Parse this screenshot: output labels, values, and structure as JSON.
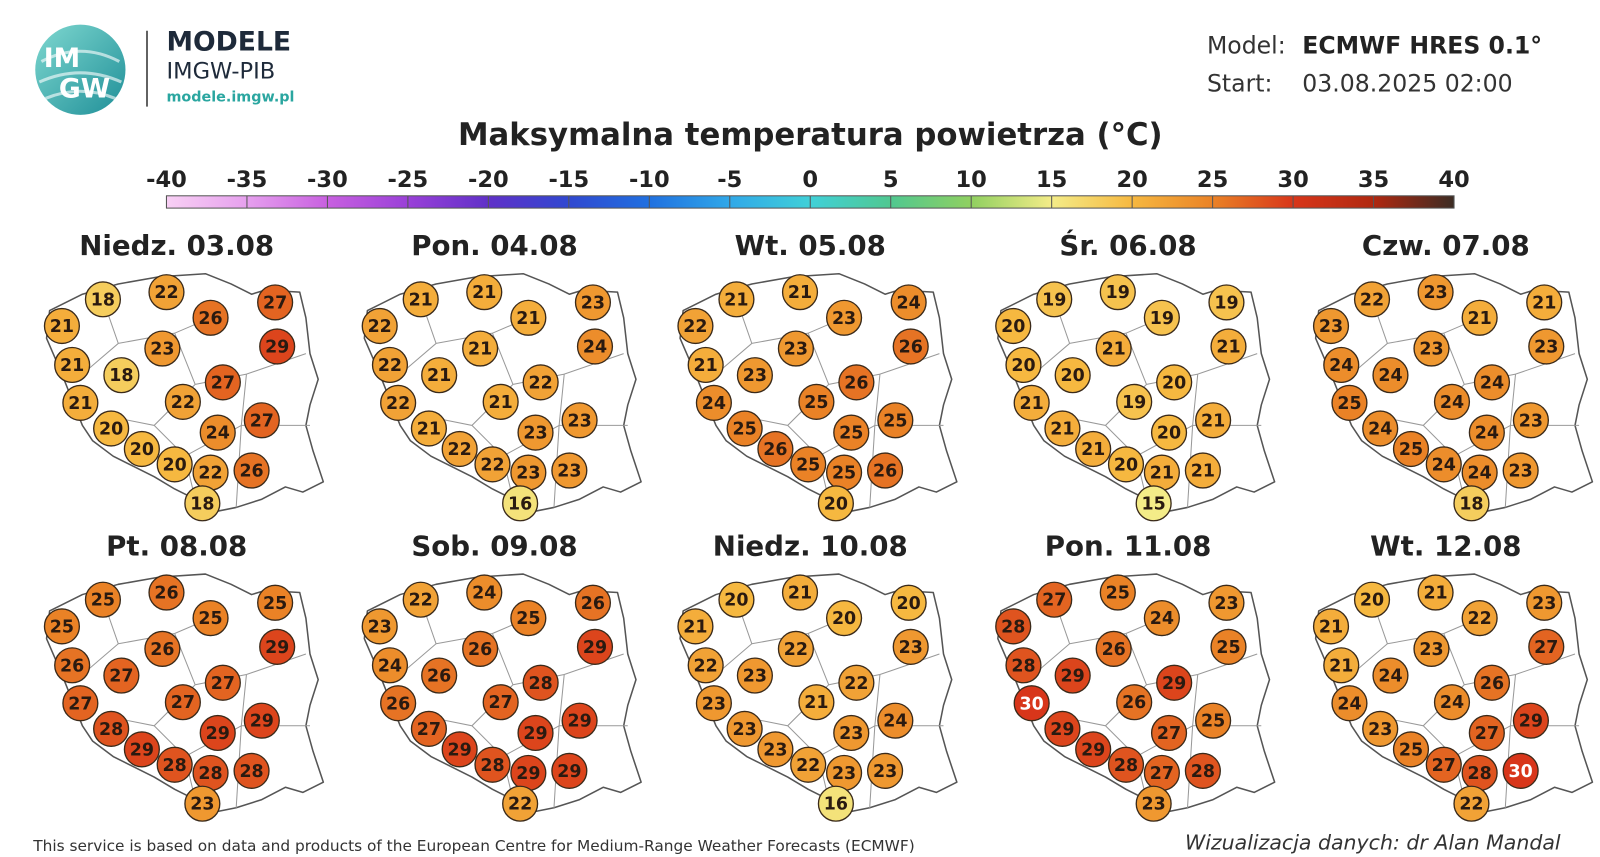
{
  "header": {
    "logo_text": [
      "IM",
      "GW"
    ],
    "brand": "MODELE",
    "org": "IMGW-PIB",
    "url": "modele.imgw.pl",
    "model_label": "Model:",
    "model": "ECMWF HRES 0.1°",
    "start_label": "Start:",
    "start": "03.08.2025 02:00"
  },
  "title": "Maksymalna temperatura powietrza (°C)",
  "colorbar": {
    "ticks": [
      -40,
      -35,
      -30,
      -25,
      -20,
      -15,
      -10,
      -5,
      0,
      5,
      10,
      15,
      20,
      25,
      30,
      35,
      40
    ],
    "colors": [
      "#f8d0f4",
      "#e6a0ee",
      "#c860e0",
      "#9a40d8",
      "#6030c8",
      "#3048d0",
      "#2070e0",
      "#30a8e8",
      "#40d0d8",
      "#50c890",
      "#90d060",
      "#f4ec88",
      "#f6b840",
      "#ea8226",
      "#d8361a",
      "#b02810",
      "#3c2c24"
    ]
  },
  "maps": [
    {
      "title": "Niedz. 03.08",
      "values": [
        21,
        18,
        22,
        26,
        27,
        29,
        23,
        21,
        18,
        27,
        21,
        22,
        20,
        27,
        24,
        20,
        20,
        22,
        26,
        18
      ]
    },
    {
      "title": "Pon. 04.08",
      "values": [
        22,
        21,
        21,
        21,
        23,
        24,
        21,
        22,
        21,
        22,
        22,
        21,
        21,
        23,
        23,
        22,
        22,
        23,
        23,
        16
      ]
    },
    {
      "title": "Wt. 05.08",
      "values": [
        22,
        21,
        21,
        23,
        24,
        26,
        23,
        21,
        23,
        26,
        24,
        25,
        25,
        25,
        25,
        26,
        25,
        25,
        26,
        20
      ]
    },
    {
      "title": "Śr. 06.08",
      "values": [
        20,
        19,
        19,
        19,
        19,
        21,
        21,
        20,
        20,
        20,
        21,
        19,
        21,
        21,
        20,
        21,
        20,
        21,
        21,
        15
      ]
    },
    {
      "title": "Czw. 07.08",
      "values": [
        23,
        22,
        23,
        21,
        21,
        23,
        23,
        24,
        24,
        24,
        25,
        24,
        24,
        23,
        24,
        25,
        24,
        24,
        23,
        18
      ]
    },
    {
      "title": "Pt. 08.08",
      "values": [
        25,
        25,
        26,
        25,
        25,
        29,
        26,
        26,
        27,
        27,
        27,
        27,
        28,
        29,
        29,
        29,
        28,
        28,
        28,
        23
      ]
    },
    {
      "title": "Sob. 09.08",
      "values": [
        23,
        22,
        24,
        25,
        26,
        29,
        26,
        24,
        26,
        28,
        26,
        27,
        27,
        29,
        29,
        29,
        28,
        29,
        29,
        22
      ]
    },
    {
      "title": "Niedz. 10.08",
      "values": [
        21,
        20,
        21,
        20,
        20,
        23,
        22,
        22,
        23,
        22,
        23,
        21,
        23,
        24,
        23,
        23,
        22,
        23,
        23,
        16
      ]
    },
    {
      "title": "Pon. 11.08",
      "values": [
        28,
        27,
        25,
        24,
        23,
        25,
        26,
        28,
        29,
        29,
        30,
        26,
        29,
        25,
        27,
        29,
        28,
        27,
        28,
        23
      ]
    },
    {
      "title": "Wt. 12.08",
      "values": [
        21,
        20,
        21,
        22,
        23,
        27,
        23,
        21,
        24,
        26,
        24,
        24,
        23,
        29,
        27,
        25,
        27,
        28,
        30,
        22
      ]
    }
  ],
  "footer": {
    "source": "This service is based on data and products of the European Centre for Medium-Range Weather Forecasts (ECMWF)",
    "credit": "Wizualizacja danych: dr Alan Mandal"
  }
}
